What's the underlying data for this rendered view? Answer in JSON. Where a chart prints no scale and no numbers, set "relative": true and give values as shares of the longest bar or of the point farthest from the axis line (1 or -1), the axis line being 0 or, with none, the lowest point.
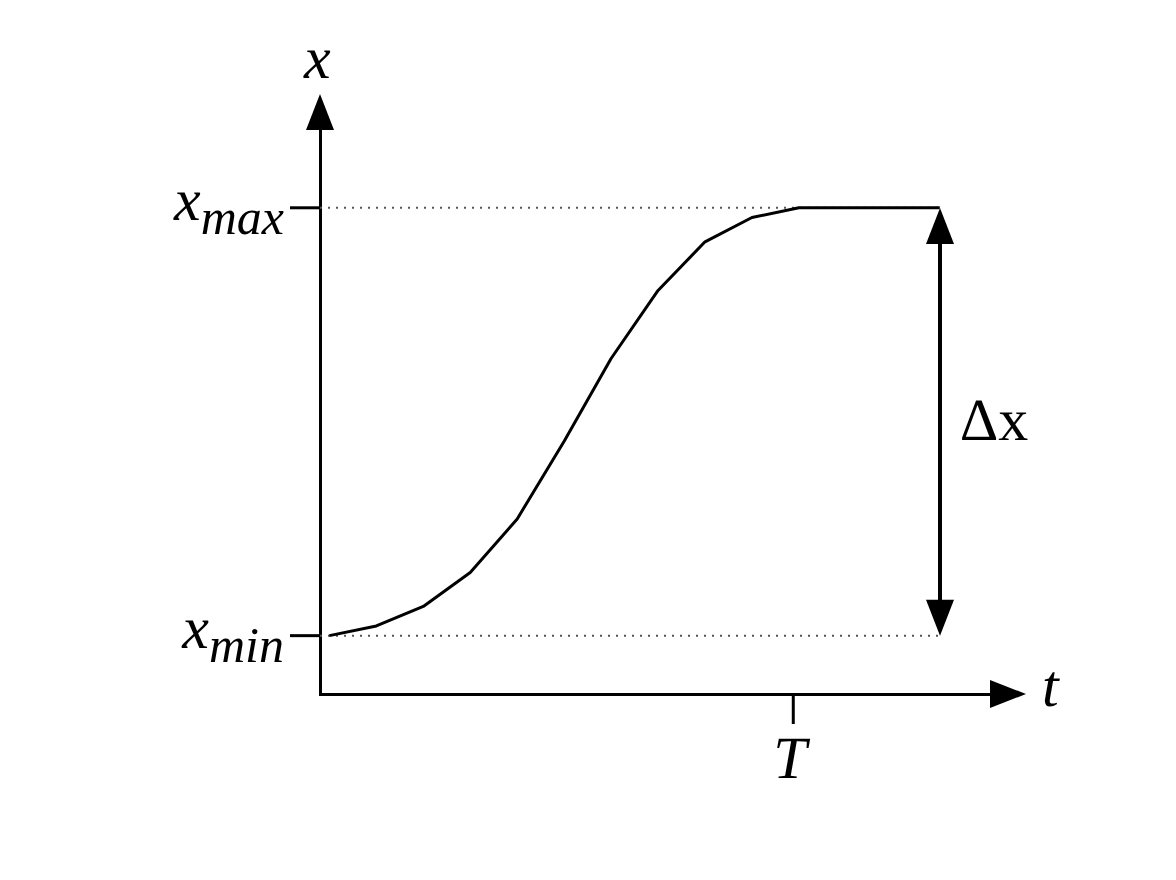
{
  "chart_data": {
    "type": "line",
    "relative": true,
    "xlabel": "t",
    "ylabel": "x",
    "categories": [
      null,
      null,
      null,
      null,
      null,
      null,
      null,
      null,
      null,
      null,
      null,
      null,
      null,
      null
    ],
    "values": [
      0.12,
      0.14,
      0.18,
      0.25,
      0.36,
      0.52,
      0.69,
      0.83,
      0.93,
      0.98,
      1,
      1,
      1,
      1
    ],
    "color": "#000000",
    "marker": "none",
    "line_style": "solid",
    "ref_lines": [
      {
        "axis": "y",
        "value": 0.12,
        "label": null,
        "line_style": "dotted",
        "color": "#555555"
      },
      {
        "axis": "y",
        "value": 1,
        "label": null,
        "line_style": "dotted",
        "color": "#555555"
      }
    ],
    "annotations": [
      "x$_{min}$",
      "x$_{max}$",
      "T",
      "Δx"
    ]
  }
}
